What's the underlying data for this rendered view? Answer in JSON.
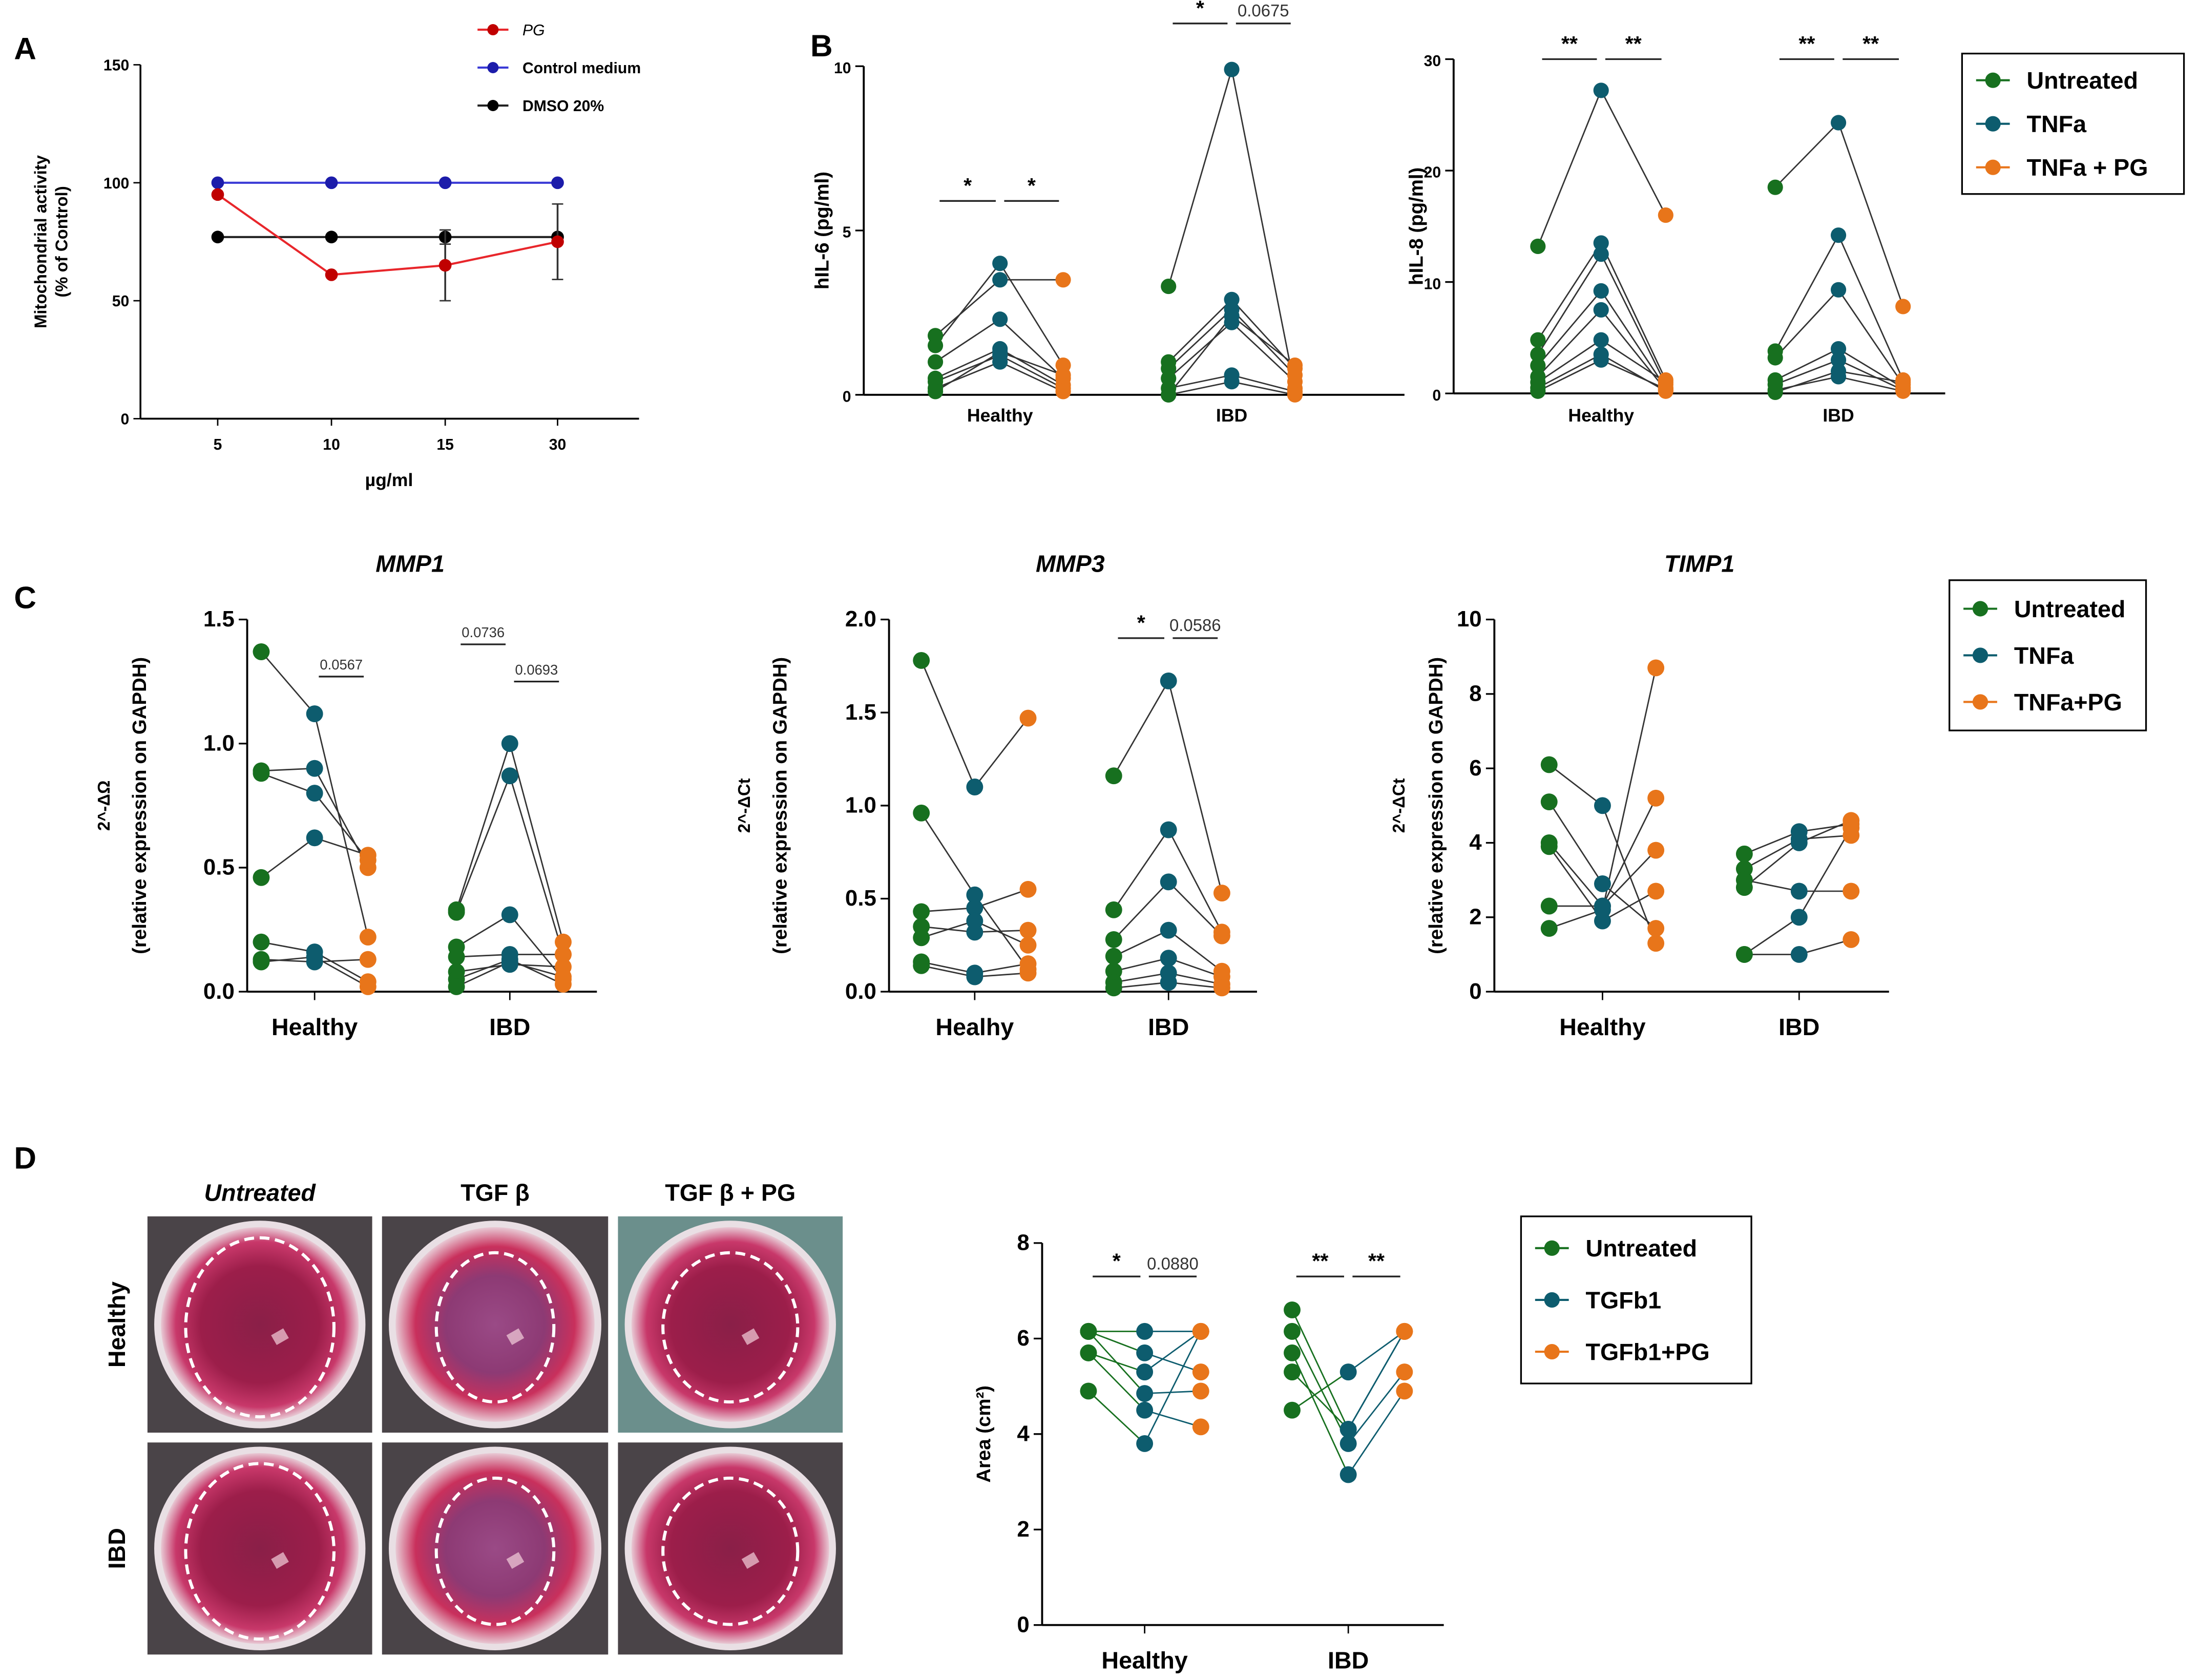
{
  "panel_letters": [
    "A",
    "B",
    "C",
    "D"
  ],
  "colors": {
    "untreated": "#17701f",
    "treated": "#0d5c6e",
    "treated_pg": "#e8751a",
    "pg": "#e8262b",
    "pg_marker": "#c00000",
    "control": "#3a3ad6",
    "control_marker": "#1c1caa",
    "dmso": "#222222"
  },
  "photos": {
    "columns": [
      "Untreated",
      "TGF β",
      "TGF β + PG"
    ],
    "rows": [
      "Healthy",
      "IBD"
    ]
  },
  "chart_data": [
    {
      "type": "line",
      "xlabel": "µg/ml",
      "ylabel": [
        "Mitochondrial activity",
        "(% of Control)"
      ],
      "categories": [
        "5",
        "10",
        "15",
        "30"
      ],
      "ylim": [
        0,
        150
      ],
      "yticks": [
        "0",
        "50",
        "100",
        "150"
      ],
      "legend_position": "top-right",
      "series": [
        {
          "name": "PG",
          "values": [
            95,
            61,
            65,
            75
          ],
          "errors": [
            0,
            0,
            15,
            16
          ]
        },
        {
          "name": "Control medium",
          "values": [
            100,
            100,
            100,
            100
          ],
          "errors": [
            0,
            0,
            0,
            0
          ]
        },
        {
          "name": "DMSO 20%",
          "values": [
            77,
            77,
            77,
            77
          ],
          "errors": [
            0,
            0,
            3,
            0
          ]
        }
      ]
    },
    {
      "type": "scatter",
      "ylabel": [
        "hIL-6 (pg/ml)"
      ],
      "ylim": [
        0,
        10
      ],
      "yticks": [
        "0",
        "5",
        "10"
      ],
      "series_names": [
        "Untreated",
        "TNFa",
        "TNFa + PG"
      ],
      "groups": [
        {
          "name": "Healthy",
          "donors": [
            [
              1.8,
              3.5,
              3.5
            ],
            [
              1.5,
              4.0,
              0.9
            ],
            [
              1.0,
              2.3,
              0.5
            ],
            [
              0.5,
              1.4,
              0.3
            ],
            [
              0.4,
              1.2,
              0.2
            ],
            [
              0.2,
              1.0,
              0.1
            ],
            [
              0.1,
              1.3,
              0.6
            ]
          ]
        },
        {
          "name": "IBD",
          "donors": [
            [
              3.3,
              9.9,
              0.2
            ],
            [
              1.0,
              2.9,
              0.8
            ],
            [
              0.8,
              2.6,
              0.6
            ],
            [
              0.5,
              2.2,
              0.4
            ],
            [
              0.2,
              0.6,
              0.1
            ],
            [
              0.0,
              0.4,
              0.0
            ],
            [
              0.0,
              2.4,
              0.9
            ]
          ]
        }
      ],
      "significance": [
        {
          "group": 0,
          "from": 0,
          "to": 1,
          "label": "*",
          "y": 5.9
        },
        {
          "group": 0,
          "from": 1,
          "to": 2,
          "label": "*",
          "y": 5.9
        },
        {
          "group": 1,
          "from": 0,
          "to": 1,
          "label": "*",
          "y": 11.3
        },
        {
          "group": 1,
          "from": 1,
          "to": 2,
          "label": "0.0675",
          "y": 11.3
        }
      ]
    },
    {
      "type": "scatter",
      "ylabel": [
        "hIL-8 (pg/ml)"
      ],
      "ylim": [
        0,
        30
      ],
      "yticks": [
        "0",
        "10",
        "20",
        "30"
      ],
      "legend_position": "right",
      "series_names": [
        "Untreated",
        "TNFa",
        "TNFa + PG"
      ],
      "groups": [
        {
          "name": "Healthy",
          "donors": [
            [
              13.2,
              27.2,
              16.0
            ],
            [
              4.8,
              13.5,
              1.2
            ],
            [
              3.5,
              12.5,
              0.8
            ],
            [
              2.5,
              9.2,
              0.5
            ],
            [
              1.5,
              7.5,
              0.3
            ],
            [
              1.0,
              4.8,
              1.0
            ],
            [
              0.5,
              3.5,
              0.2
            ],
            [
              0.2,
              3.0,
              0.4
            ]
          ]
        },
        {
          "name": "IBD",
          "donors": [
            [
              18.5,
              24.3,
              7.8
            ],
            [
              3.8,
              14.2,
              1.2
            ],
            [
              3.2,
              9.3,
              0.8
            ],
            [
              1.2,
              4.0,
              0.5
            ],
            [
              0.8,
              3.0,
              0.3
            ],
            [
              0.3,
              1.5,
              0.2
            ],
            [
              0.1,
              2.0,
              1.0
            ]
          ]
        }
      ],
      "significance": [
        {
          "group": 0,
          "from": 0,
          "to": 1,
          "label": "**",
          "y": 30
        },
        {
          "group": 0,
          "from": 1,
          "to": 2,
          "label": "**",
          "y": 30
        },
        {
          "group": 1,
          "from": 0,
          "to": 1,
          "label": "**",
          "y": 30
        },
        {
          "group": 1,
          "from": 1,
          "to": 2,
          "label": "**",
          "y": 30
        }
      ]
    },
    {
      "type": "scatter",
      "title": "MMP1",
      "ylabel": [
        "2^-ΔΩ",
        "(relative expression on GAPDH)"
      ],
      "ylim": [
        0,
        1.5
      ],
      "yticks": [
        "0.0",
        "0.5",
        "1.0",
        "1.5"
      ],
      "series_names": [
        "Untreated",
        "TNFa",
        "TNFa+PG"
      ],
      "groups": [
        {
          "name": "Healthy",
          "donors": [
            [
              1.37,
              1.12,
              0.22
            ],
            [
              0.89,
              0.9,
              0.5
            ],
            [
              0.88,
              0.8,
              0.53
            ],
            [
              0.46,
              0.62,
              0.55
            ],
            [
              0.2,
              0.16,
              0.04
            ],
            [
              0.13,
              0.12,
              0.13
            ],
            [
              0.12,
              0.14,
              0.02
            ]
          ]
        },
        {
          "name": "IBD",
          "donors": [
            [
              0.33,
              1.0,
              0.2
            ],
            [
              0.32,
              0.87,
              0.15
            ],
            [
              0.18,
              0.31,
              0.05
            ],
            [
              0.14,
              0.15,
              0.15
            ],
            [
              0.08,
              0.11,
              0.1
            ],
            [
              0.05,
              0.13,
              0.03
            ],
            [
              0.02,
              0.12,
              0.06
            ]
          ]
        }
      ],
      "significance": [
        {
          "group": 0,
          "from": 1,
          "to": 2,
          "label": "0.0567",
          "y": 1.27
        },
        {
          "group": 1,
          "from": 0,
          "to": 1,
          "label": "0.0736",
          "y": 1.4
        },
        {
          "group": 1,
          "from": 1,
          "to": 2,
          "label": "0.0693",
          "y": 1.25
        }
      ]
    },
    {
      "type": "scatter",
      "title": "MMP3",
      "ylabel": [
        "2^-ΔCt",
        "(relative expression on GAPDH)"
      ],
      "ylim": [
        0,
        2.0
      ],
      "yticks": [
        "0.0",
        "0.5",
        "1.0",
        "1.5",
        "2.0"
      ],
      "series_names": [
        "Untreated",
        "TNFa",
        "TNFa+PG"
      ],
      "groups": [
        {
          "name": "Healhy",
          "donors": [
            [
              1.78,
              1.1,
              1.47
            ],
            [
              0.96,
              0.52,
              0.12
            ],
            [
              0.43,
              0.45,
              0.55
            ],
            [
              0.35,
              0.32,
              0.33
            ],
            [
              0.29,
              0.38,
              0.25
            ],
            [
              0.16,
              0.1,
              0.15
            ],
            [
              0.14,
              0.08,
              0.1
            ]
          ]
        },
        {
          "name": "IBD",
          "donors": [
            [
              1.16,
              1.67,
              0.53
            ],
            [
              0.44,
              0.87,
              0.32
            ],
            [
              0.28,
              0.59,
              0.3
            ],
            [
              0.19,
              0.33,
              0.11
            ],
            [
              0.11,
              0.18,
              0.08
            ],
            [
              0.05,
              0.1,
              0.04
            ],
            [
              0.02,
              0.05,
              0.02
            ]
          ]
        }
      ],
      "significance": [
        {
          "group": 1,
          "from": 0,
          "to": 1,
          "label": "*",
          "y": 1.9
        },
        {
          "group": 1,
          "from": 1,
          "to": 2,
          "label": "0.0586",
          "y": 1.9
        }
      ]
    },
    {
      "type": "scatter",
      "title": "TIMP1",
      "ylabel": [
        "2^-ΔCt",
        "(relative expression on GAPDH)"
      ],
      "ylim": [
        0,
        10
      ],
      "yticks": [
        "0",
        "2",
        "4",
        "6",
        "8",
        "10"
      ],
      "legend_position": "right",
      "series_names": [
        "Untreated",
        "TNFa",
        "TNFa+PG"
      ],
      "groups": [
        {
          "name": "Healthy",
          "donors": [
            [
              6.1,
              5.0,
              1.3
            ],
            [
              5.1,
              2.9,
              1.7
            ],
            [
              4.0,
              2.3,
              3.8
            ],
            [
              3.9,
              1.9,
              2.7
            ],
            [
              2.3,
              2.3,
              5.2
            ],
            [
              1.7,
              2.2,
              8.7
            ]
          ]
        },
        {
          "name": "IBD",
          "donors": [
            [
              3.7,
              4.3,
              4.5
            ],
            [
              3.3,
              4.1,
              4.2
            ],
            [
              3.0,
              2.7,
              2.7
            ],
            [
              2.8,
              4.0,
              4.6
            ],
            [
              1.0,
              2.0,
              4.4
            ],
            [
              1.0,
              1.0,
              1.4
            ]
          ]
        }
      ],
      "significance": []
    },
    {
      "type": "scatter",
      "ylabel": [
        "Area (cm²)"
      ],
      "ylim": [
        0,
        8
      ],
      "yticks": [
        "0",
        "2",
        "4",
        "6",
        "8"
      ],
      "legend_position": "right",
      "series_names": [
        "Untreated",
        "TGFb1",
        "TGFb1+PG"
      ],
      "groups": [
        {
          "name": "Healthy",
          "donors": [
            [
              6.15,
              6.15,
              6.15
            ],
            [
              6.15,
              5.7,
              5.3
            ],
            [
              5.7,
              5.3,
              6.15
            ],
            [
              5.7,
              4.5,
              4.15
            ],
            [
              4.9,
              3.8,
              6.15
            ],
            [
              6.15,
              4.85,
              4.9
            ]
          ]
        },
        {
          "name": "IBD",
          "donors": [
            [
              6.6,
              4.1,
              6.15
            ],
            [
              6.15,
              3.8,
              5.3
            ],
            [
              5.7,
              3.15,
              4.9
            ],
            [
              5.3,
              4.1,
              6.15
            ],
            [
              4.5,
              5.3,
              6.15
            ]
          ]
        }
      ],
      "significance": [
        {
          "group": 0,
          "from": 0,
          "to": 1,
          "label": "*",
          "y": 7.3
        },
        {
          "group": 0,
          "from": 1,
          "to": 2,
          "label": "0.0880",
          "y": 7.3
        },
        {
          "group": 1,
          "from": 0,
          "to": 1,
          "label": "**",
          "y": 7.3
        },
        {
          "group": 1,
          "from": 1,
          "to": 2,
          "label": "**",
          "y": 7.3
        }
      ]
    }
  ]
}
